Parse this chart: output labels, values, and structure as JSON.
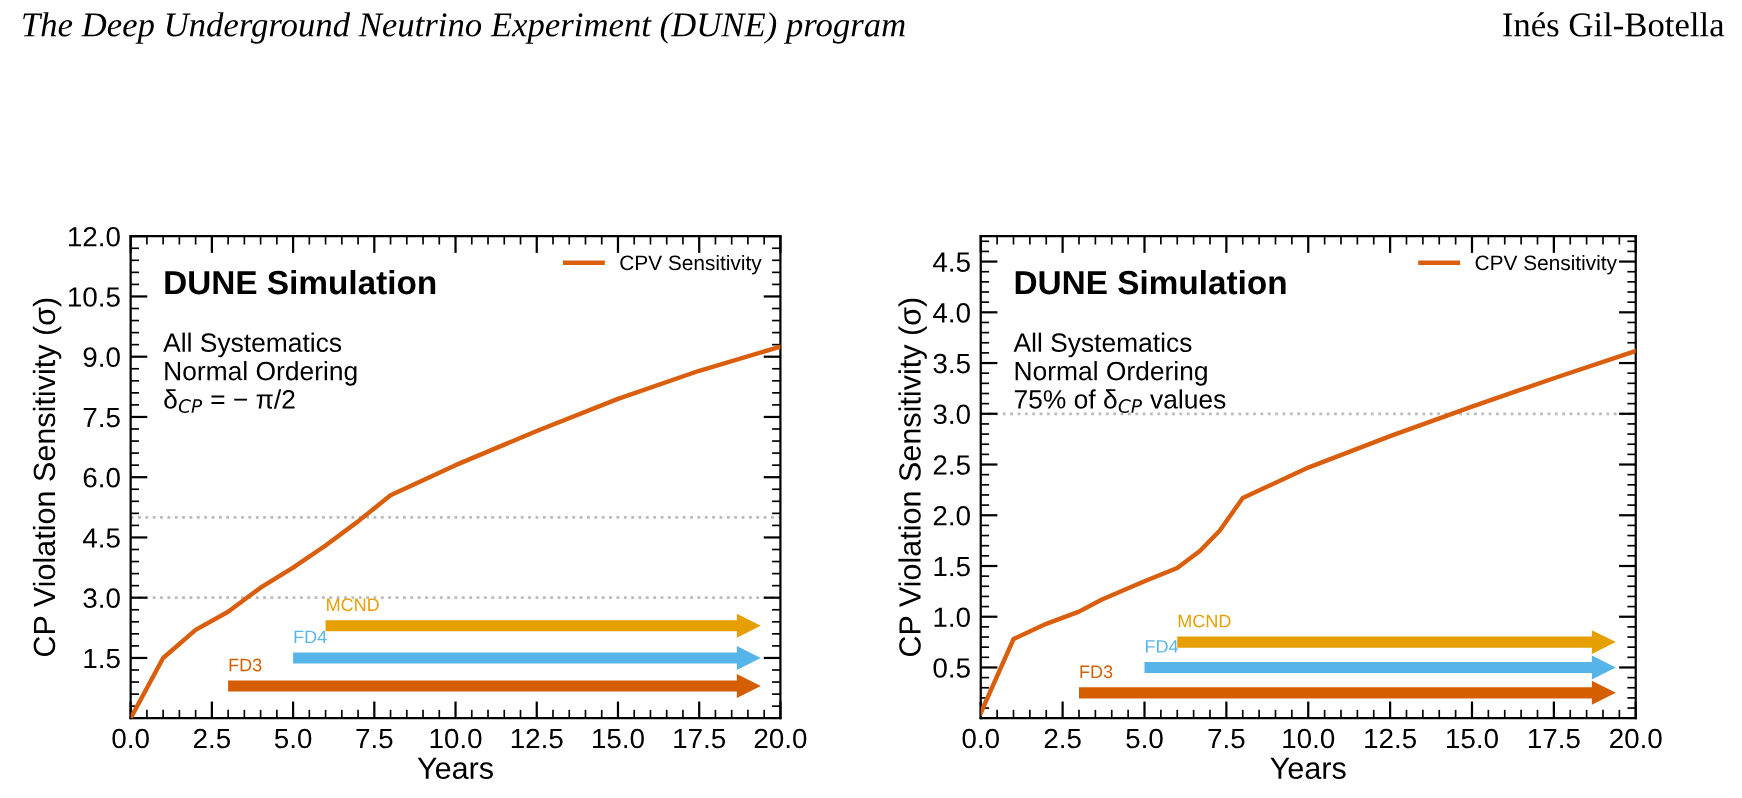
{
  "chart_data": [
    {
      "type": "line",
      "xlabel": "Years",
      "ylabel": "CP Violation Sensitivity (σ)",
      "annotations": [
        "The Deep Underground Neutrino Experiment (DUNE) program",
        "DUNE Simulation",
        "All Systematics\nNormal Ordering\nδ$_{CP}$ = − π/2"
      ],
      "series": [
        {
          "name": "CPV Sensitivity",
          "color": "#d95f0e",
          "x": [
            0,
            1,
            2,
            3,
            4,
            5,
            6,
            7,
            8,
            10,
            12.5,
            15,
            17.5,
            20
          ],
          "values": [
            0,
            1.5,
            2.2,
            2.65,
            3.25,
            3.75,
            4.3,
            4.9,
            5.55,
            6.3,
            7.15,
            7.95,
            8.65,
            9.25
          ]
        },
        {
          "name": "MCND",
          "color": "#e69f00",
          "x": [
            6,
            19
          ],
          "values": [
            2.3,
            2.3
          ]
        },
        {
          "name": "FD4",
          "color": "#56b4e9",
          "x": [
            5,
            19
          ],
          "values": [
            1.5,
            1.5
          ]
        },
        {
          "name": "FD3",
          "color": "#d55e00",
          "x": [
            3,
            19
          ],
          "values": [
            0.8,
            0.8
          ]
        }
      ],
      "xlim": [
        0,
        20
      ],
      "ylim": [
        0,
        12
      ],
      "xticks": [
        {
          "value": 0,
          "label": "0.0"
        },
        2.5,
        {
          "value": 5,
          "label": "5.0"
        },
        7.5,
        {
          "value": 10,
          "label": "10.0"
        },
        12.5,
        {
          "value": 15,
          "label": "15.0"
        },
        17.5,
        {
          "value": 20,
          "label": "20.0"
        }
      ],
      "yticks": [
        1.5,
        {
          "value": 3,
          "label": "3.0"
        },
        4.5,
        {
          "value": 6,
          "label": "6.0"
        },
        7.5,
        {
          "value": 9,
          "label": "9.0"
        },
        10.5,
        {
          "value": 12,
          "label": "12.0"
        }
      ],
      "ref_lines": [
        {
          "axis": "y",
          "value": 3,
          "color": "#bbbbbb",
          "line_style": "dotted"
        },
        {
          "axis": "y",
          "value": 5,
          "color": "#bbbbbb",
          "line_style": "dotted"
        }
      ],
      "legend": "top right",
      "grid": false
    },
    {
      "type": "line",
      "xlabel": "Years",
      "ylabel": "CP Violation Sensitivity (σ)",
      "annotations": [
        "Inés Gil-Botella",
        "DUNE Simulation",
        "All Systematics\nNormal Ordering\n75% of δ$_{CP}$ values"
      ],
      "series": [
        {
          "name": "CPV Sensitivity",
          "color": "#d95f0e",
          "x": [
            0,
            1,
            2,
            3,
            3.7,
            5,
            6,
            6.7,
            7.3,
            8,
            10,
            12.5,
            15,
            17.5,
            20
          ],
          "values": [
            0.05,
            0.78,
            0.93,
            1.05,
            1.17,
            1.35,
            1.48,
            1.65,
            1.85,
            2.17,
            2.47,
            2.78,
            3.07,
            3.35,
            3.62
          ]
        },
        {
          "name": "MCND",
          "color": "#e69f00",
          "x": [
            6,
            19
          ],
          "values": [
            0.75,
            0.75
          ]
        },
        {
          "name": "FD4",
          "color": "#56b4e9",
          "x": [
            5,
            19
          ],
          "values": [
            0.5,
            0.5
          ]
        },
        {
          "name": "FD3",
          "color": "#d55e00",
          "x": [
            3,
            19
          ],
          "values": [
            0.25,
            0.25
          ]
        }
      ],
      "xlim": [
        0,
        20
      ],
      "ylim": [
        0,
        4.75
      ],
      "xticks": [
        {
          "value": 0,
          "label": "0.0"
        },
        2.5,
        {
          "value": 5,
          "label": "5.0"
        },
        7.5,
        {
          "value": 10,
          "label": "10.0"
        },
        12.5,
        {
          "value": 15,
          "label": "15.0"
        },
        17.5,
        {
          "value": 20,
          "label": "20.0"
        }
      ],
      "yticks": [
        0.5,
        {
          "value": 1,
          "label": "1.0"
        },
        1.5,
        {
          "value": 2,
          "label": "2.0"
        },
        2.5,
        {
          "value": 3,
          "label": "3.0"
        },
        3.5,
        {
          "value": 4,
          "label": "4.0"
        },
        4.5
      ],
      "ref_lines": [
        {
          "axis": "y",
          "value": 3,
          "color": "#bbbbbb",
          "line_style": "dotted"
        }
      ],
      "legend": "top right",
      "grid": false
    }
  ]
}
